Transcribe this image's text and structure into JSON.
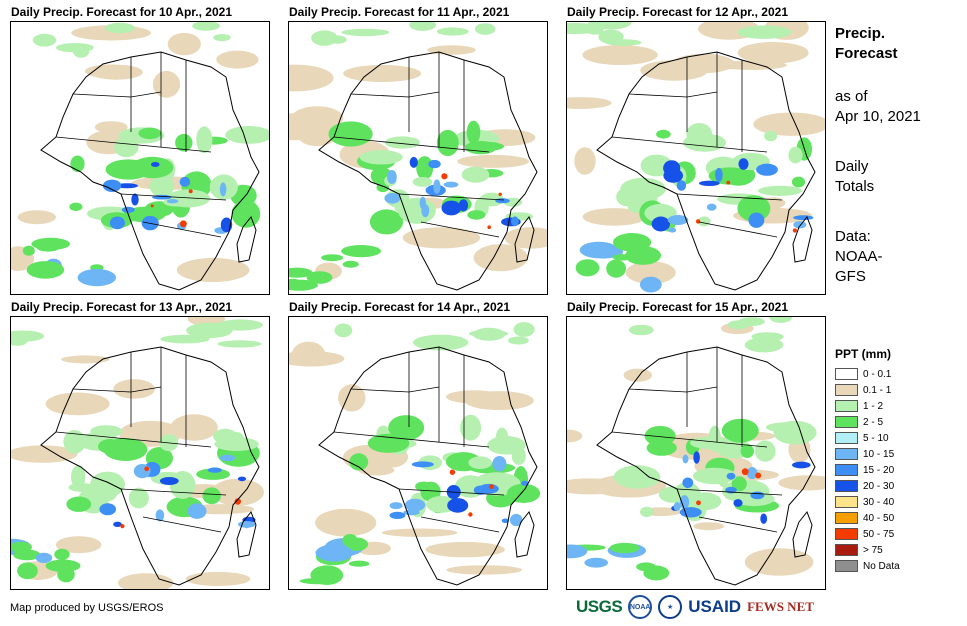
{
  "panels": [
    {
      "title": "Daily Precip. Forecast for 10 Apr., 2021"
    },
    {
      "title": "Daily Precip. Forecast for 11 Apr., 2021"
    },
    {
      "title": "Daily Precip. Forecast for 12 Apr., 2021"
    },
    {
      "title": "Daily Precip. Forecast for 13 Apr., 2021"
    },
    {
      "title": "Daily Precip. Forecast for 14 Apr., 2021"
    },
    {
      "title": "Daily Precip. Forecast for 15 Apr., 2021"
    }
  ],
  "side": {
    "title_line1": "Precip.",
    "title_line2": "Forecast",
    "asof_line1": "as of",
    "asof_line2": "Apr 10, 2021",
    "daily_line1": "Daily",
    "daily_line2": "Totals",
    "data_line1": "Data:",
    "data_line2": "NOAA-",
    "data_line3": "GFS"
  },
  "legend": {
    "title": "PPT (mm)",
    "items": [
      {
        "label": "0 - 0.1",
        "color": "#ffffff"
      },
      {
        "label": "0.1 - 1",
        "color": "#e8d7b8"
      },
      {
        "label": "1 - 2",
        "color": "#b5f0b0"
      },
      {
        "label": "2 - 5",
        "color": "#5fe35f"
      },
      {
        "label": "5 - 10",
        "color": "#b2eef5"
      },
      {
        "label": "10 - 15",
        "color": "#6eb5f5"
      },
      {
        "label": "15 - 20",
        "color": "#3d8ef5"
      },
      {
        "label": "20 - 30",
        "color": "#1652e8"
      },
      {
        "label": "30 - 40",
        "color": "#fde38a"
      },
      {
        "label": "40 - 50",
        "color": "#f5a000"
      },
      {
        "label": "50 - 75",
        "color": "#f53c00"
      },
      {
        "label": "> 75",
        "color": "#a81c10"
      },
      {
        "label": "No Data",
        "color": "#8f8f8f"
      }
    ]
  },
  "footer": {
    "credit": "Map produced by USGS/EROS",
    "logos": {
      "usgs": "USGS",
      "noaa": "NOAA",
      "usaid": "USAID",
      "fews": "FEWS NET"
    }
  }
}
